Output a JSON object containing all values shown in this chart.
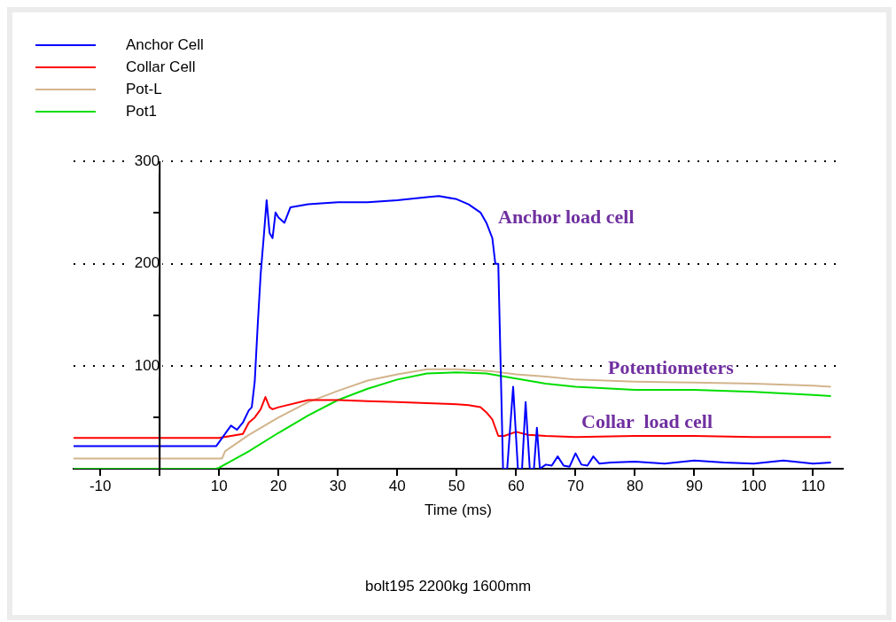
{
  "chart_data": {
    "type": "line",
    "xlabel": "Time (ms)",
    "legend": "top left",
    "grid": "y",
    "line_style": "solid",
    "marker": "none",
    "xlim": [
      -14.5,
      115
    ],
    "ylim": [
      0,
      300
    ],
    "xticks": [
      -10,
      {
        "value": 0,
        "label": null
      },
      10,
      20,
      30,
      40,
      50,
      60,
      70,
      80,
      90,
      100,
      110
    ],
    "yticks": [
      {
        "value": 0,
        "label": null
      },
      {
        "value": 50,
        "label": null
      },
      100,
      {
        "value": 150,
        "label": null
      },
      200,
      {
        "value": 250,
        "label": null
      },
      300
    ],
    "series": [
      {
        "name": "Anchor Cell",
        "color": "#0000ff",
        "x": [
          -14.5,
          -5,
          0,
          5,
          9.5,
          10.5,
          12,
          13,
          14,
          15,
          15.5,
          16,
          16.5,
          17,
          17.5,
          18,
          18.5,
          19,
          19.5,
          20,
          21,
          22,
          25,
          30,
          35,
          40,
          45,
          47,
          50,
          52,
          54,
          55,
          56,
          56.5,
          57,
          57.8,
          58.5,
          59.5,
          60.3,
          61,
          61.6,
          62.3,
          63,
          63.5,
          64,
          65,
          66,
          67,
          68,
          69,
          70,
          71,
          72,
          73,
          74,
          76,
          80,
          85,
          90,
          95,
          100,
          105,
          110,
          113
        ],
        "values": [
          22,
          22,
          22,
          22,
          22,
          30,
          42,
          38,
          45,
          57,
          60,
          85,
          140,
          190,
          225,
          262,
          230,
          225,
          250,
          245,
          240,
          255,
          258,
          260,
          260,
          262,
          265,
          266,
          263,
          258,
          250,
          240,
          225,
          200,
          200,
          0,
          0,
          80,
          0,
          0,
          65,
          0,
          0,
          40,
          0,
          4,
          3,
          12,
          3,
          2,
          15,
          4,
          3,
          12,
          5,
          6,
          7,
          5,
          8,
          6,
          5,
          8,
          5,
          6
        ]
      },
      {
        "name": "Collar Cell",
        "color": "#ff0000",
        "x": [
          -14.5,
          0,
          10,
          12,
          14,
          15,
          16,
          17,
          17.8,
          18.5,
          19,
          20,
          25,
          30,
          35,
          40,
          45,
          50,
          52,
          54,
          55,
          56,
          57,
          58,
          60,
          62,
          65,
          70,
          80,
          90,
          100,
          113
        ],
        "values": [
          30,
          30,
          30,
          32,
          34,
          45,
          50,
          58,
          70,
          60,
          58,
          60,
          67,
          67,
          66,
          65,
          64,
          63,
          62,
          60,
          55,
          48,
          32,
          32,
          36,
          33,
          32,
          31,
          32,
          32,
          31,
          31
        ]
      },
      {
        "name": "Pot-L",
        "color": "#d2b48c",
        "x": [
          -14.5,
          0,
          10.5,
          11,
          15,
          20,
          25,
          30,
          35,
          40,
          45,
          50,
          56,
          60,
          65,
          70,
          80,
          90,
          100,
          110,
          113
        ],
        "values": [
          10,
          10,
          10,
          17,
          33,
          50,
          65,
          76,
          86,
          92,
          97,
          97,
          95,
          92,
          90,
          87,
          85,
          84,
          83,
          81,
          80
        ]
      },
      {
        "name": "Pot1",
        "color": "#00dd00",
        "x": [
          -14.5,
          0,
          9.5,
          10,
          15,
          20,
          25,
          30,
          35,
          40,
          45,
          50,
          55,
          60,
          65,
          70,
          80,
          90,
          100,
          110,
          113
        ],
        "values": [
          0,
          0,
          0,
          1,
          17,
          35,
          52,
          67,
          78,
          87,
          93,
          94,
          93,
          88,
          83,
          80,
          77,
          77,
          75,
          72,
          71
        ]
      }
    ],
    "annotations": [
      "Anchor load cell",
      "Potentiometers",
      "Collar  load cell",
      "bolt195 2200kg 1600mm"
    ]
  }
}
